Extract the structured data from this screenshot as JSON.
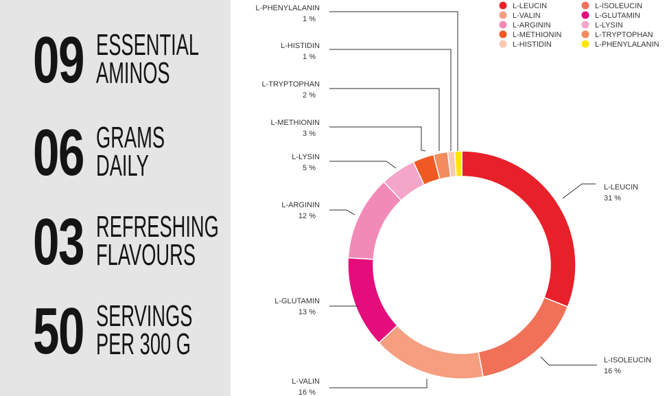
{
  "stats": [
    {
      "number": "09",
      "line1": "ESSENTIAL",
      "line2": "AMINOS"
    },
    {
      "number": "06",
      "line1": "GRAMS",
      "line2": "DAILY"
    },
    {
      "number": "03",
      "line1": "REFRESHING",
      "line2": "FLAVOURS"
    },
    {
      "number": "50",
      "line1": "SERVINGS",
      "line2": "PER 300 G"
    }
  ],
  "chart_data": {
    "type": "pie",
    "donut": true,
    "unit": "%",
    "slices": [
      {
        "name": "L-LEUCIN",
        "value": 31,
        "label": "31 %",
        "color": "#e8202a"
      },
      {
        "name": "L-ISOLEUCIN",
        "value": 16,
        "label": "16 %",
        "color": "#f07058"
      },
      {
        "name": "L-VALIN",
        "value": 16,
        "label": "16 %",
        "color": "#f59e80"
      },
      {
        "name": "L-GLUTAMIN",
        "value": 13,
        "label": "13 %",
        "color": "#e50c7b"
      },
      {
        "name": "L-ARGININ",
        "value": 12,
        "label": "12 %",
        "color": "#f28ab8"
      },
      {
        "name": "L-LYSIN",
        "value": 5,
        "label": "5 %",
        "color": "#f4a6c8"
      },
      {
        "name": "L-METHIONIN",
        "value": 3,
        "label": "3 %",
        "color": "#ef5a24"
      },
      {
        "name": "L-TRYPTOPHAN",
        "value": 2,
        "label": "2 %",
        "color": "#f38b5e"
      },
      {
        "name": "L-HISTIDIN",
        "value": 1,
        "label": "1 %",
        "color": "#f9c8b2"
      },
      {
        "name": "L-PHENYLALANIN",
        "value": 1,
        "label": "1 %",
        "color": "#ffe600"
      }
    ],
    "legend": {
      "placement": "top-right",
      "items": [
        "L-LEUCIN",
        "L-ISOLEUCIN",
        "L-VALIN",
        "L-GLUTAMIN",
        "L-ARGININ",
        "L-LYSIN",
        "L-METHIONIN",
        "L-TRYPTOPHAN",
        "L-HISTIDIN",
        "L-PHENYLALANIN"
      ]
    }
  }
}
